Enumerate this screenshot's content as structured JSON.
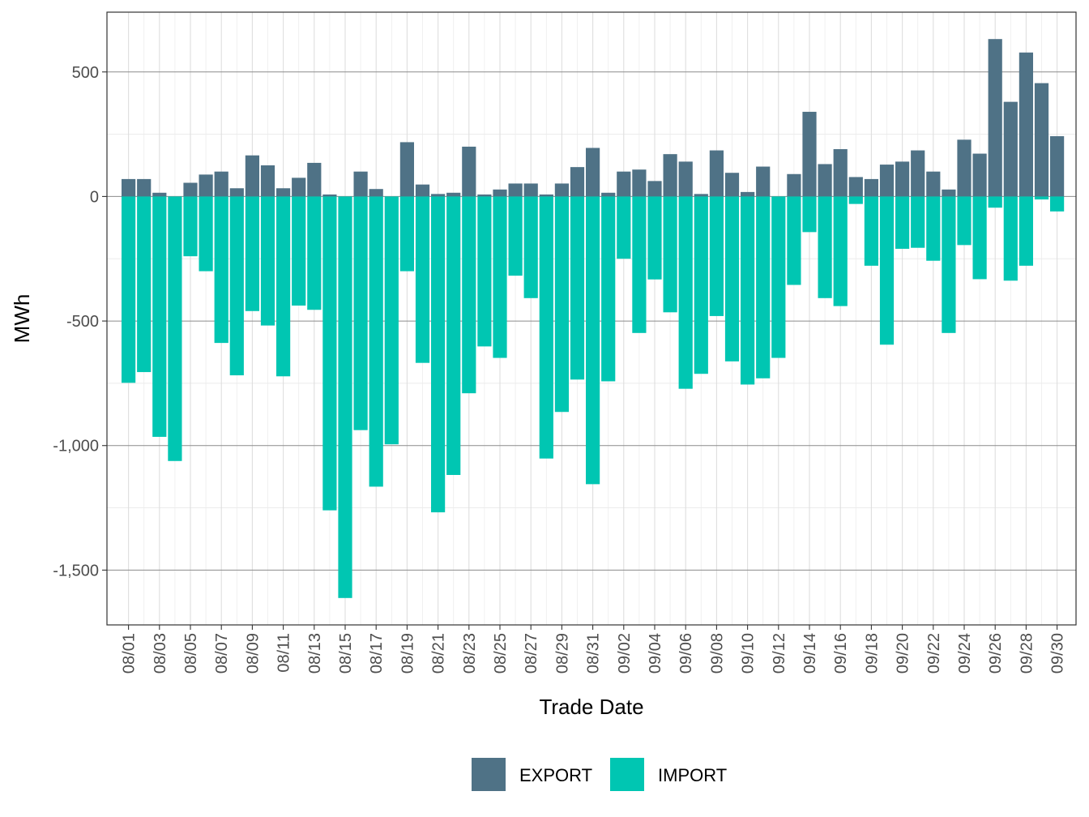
{
  "chart_data": {
    "type": "bar",
    "stacked": true,
    "xlabel": "Trade Date",
    "ylabel": "MWh",
    "ylim": [
      -1720,
      740
    ],
    "yticks": [
      500,
      0,
      -500,
      -1000,
      -1500
    ],
    "ytick_labels": [
      "500",
      "0",
      "-500",
      "-1,000",
      "-1,500"
    ],
    "minor_gridlines": true,
    "legend_position": "bottom",
    "categories": [
      "08/01",
      "08/02",
      "08/03",
      "08/04",
      "08/05",
      "08/06",
      "08/07",
      "08/08",
      "08/09",
      "08/10",
      "08/11",
      "08/12",
      "08/13",
      "08/14",
      "08/15",
      "08/16",
      "08/17",
      "08/18",
      "08/19",
      "08/20",
      "08/21",
      "08/22",
      "08/23",
      "08/24",
      "08/25",
      "08/26",
      "08/27",
      "08/28",
      "08/29",
      "08/30",
      "08/31",
      "09/01",
      "09/02",
      "09/03",
      "09/04",
      "09/05",
      "09/06",
      "09/07",
      "09/08",
      "09/09",
      "09/10",
      "09/11",
      "09/12",
      "09/13",
      "09/14",
      "09/15",
      "09/16",
      "09/17",
      "09/18",
      "09/19",
      "09/20",
      "09/21",
      "09/22",
      "09/23",
      "09/24",
      "09/25",
      "09/26",
      "09/27",
      "09/28",
      "09/29",
      "09/30"
    ],
    "xtick_labels": [
      "08/01",
      "08/03",
      "08/05",
      "08/07",
      "08/09",
      "08/11",
      "08/13",
      "08/15",
      "08/17",
      "08/19",
      "08/21",
      "08/23",
      "08/25",
      "08/27",
      "08/29",
      "08/31",
      "09/02",
      "09/04",
      "09/06",
      "09/08",
      "09/10",
      "09/12",
      "09/14",
      "09/16",
      "09/18",
      "09/20",
      "09/22",
      "09/24",
      "09/26",
      "09/28",
      "09/30"
    ],
    "series": [
      {
        "name": "EXPORT",
        "color": "#4f7286",
        "values": [
          70,
          70,
          15,
          0,
          55,
          88,
          100,
          33,
          165,
          125,
          33,
          75,
          135,
          8,
          0,
          100,
          30,
          0,
          218,
          48,
          10,
          15,
          200,
          8,
          28,
          52,
          52,
          8,
          52,
          118,
          195,
          15,
          100,
          108,
          62,
          170,
          140,
          10,
          185,
          95,
          18,
          120,
          0,
          90,
          340,
          130,
          190,
          78,
          70,
          128,
          140,
          185,
          100,
          28,
          228,
          172,
          632,
          380,
          578,
          455,
          242
        ]
      },
      {
        "name": "IMPORT",
        "color": "#00c6b2",
        "values": [
          -748,
          -705,
          -965,
          -1062,
          -240,
          -300,
          -588,
          -718,
          -460,
          -518,
          -722,
          -438,
          -455,
          -1260,
          -1612,
          -938,
          -1165,
          -995,
          -300,
          -668,
          -1268,
          -1118,
          -790,
          -602,
          -648,
          -318,
          -408,
          -1052,
          -865,
          -735,
          -1155,
          -742,
          -250,
          -548,
          -333,
          -465,
          -772,
          -712,
          -480,
          -662,
          -755,
          -730,
          -648,
          -355,
          -143,
          -408,
          -440,
          -30,
          -278,
          -595,
          -210,
          -206,
          -258,
          -548,
          -195,
          -332,
          -45,
          -338,
          -278,
          -12,
          -60
        ]
      }
    ]
  }
}
